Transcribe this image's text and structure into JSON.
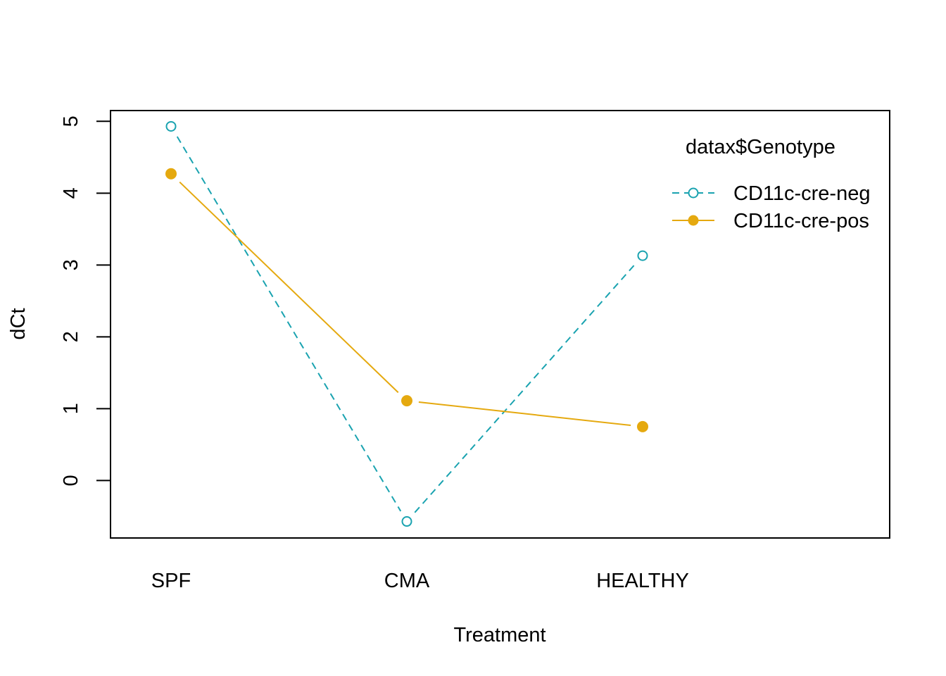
{
  "chart_data": {
    "type": "line",
    "xlabel": "Treatment",
    "ylabel": "dCt",
    "categories": [
      "SPF",
      "CMA",
      "HEALTHY"
    ],
    "ylim": [
      -0.8,
      5.15
    ],
    "yticks": [
      "0",
      "1",
      "2",
      "3",
      "4",
      "5"
    ],
    "grid": false,
    "legend": {
      "title": "datax$Genotype",
      "placement": "top-right"
    },
    "series": [
      {
        "name": "CD11c-cre-neg",
        "values": [
          4.93,
          -0.57,
          3.13
        ],
        "color": "#1aa3b0",
        "marker": "open-circle",
        "line": "dashed"
      },
      {
        "name": "CD11c-cre-pos",
        "values": [
          4.27,
          1.11,
          0.75
        ],
        "color": "#e5a90f",
        "marker": "filled-circle",
        "line": "solid"
      }
    ]
  }
}
